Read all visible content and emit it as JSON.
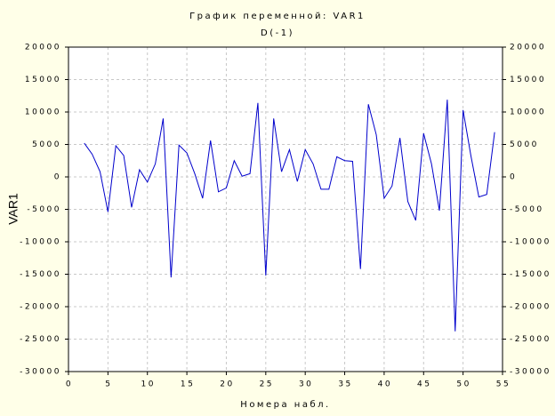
{
  "chart_data": {
    "type": "line",
    "title": "График переменной: VAR1",
    "subtitle": "D(-1)",
    "x_label": "Номера набл.",
    "y_label": "VAR1",
    "x": [
      2,
      3,
      4,
      5,
      6,
      7,
      8,
      9,
      10,
      11,
      12,
      13,
      14,
      15,
      16,
      17,
      18,
      19,
      20,
      21,
      22,
      23,
      24,
      25,
      26,
      27,
      28,
      29,
      30,
      31,
      32,
      33,
      34,
      35,
      36,
      37,
      38,
      39,
      40,
      41,
      42,
      43,
      44,
      45,
      46,
      47,
      48,
      49,
      50,
      51,
      52,
      53,
      54
    ],
    "series": [
      {
        "name": "VAR1",
        "color": "#0000cc",
        "values": [
          5200,
          3500,
          800,
          -5400,
          4800,
          3300,
          -4700,
          1100,
          -800,
          2000,
          9000,
          -15500,
          4900,
          3700,
          500,
          -3300,
          5600,
          -2300,
          -1700,
          2500,
          100,
          500,
          11400,
          -15200,
          9000,
          800,
          4200,
          -700,
          4200,
          2000,
          -1900,
          -1900,
          3100,
          2500,
          2400,
          -14200,
          11200,
          6500,
          -3300,
          -1400,
          6000,
          -3800,
          -6700,
          6700,
          2000,
          -5200,
          11900,
          -23800,
          10300,
          3200,
          -3100,
          -2700,
          6900
        ]
      }
    ],
    "xlim": [
      0,
      55
    ],
    "xticks": [
      0,
      5,
      10,
      15,
      20,
      25,
      30,
      35,
      40,
      45,
      50,
      55
    ],
    "ylim": [
      -30000,
      20000
    ],
    "yticks": [
      -30000,
      -25000,
      -20000,
      -15000,
      -10000,
      -5000,
      0,
      5000,
      10000,
      15000,
      20000
    ],
    "grid": true
  }
}
